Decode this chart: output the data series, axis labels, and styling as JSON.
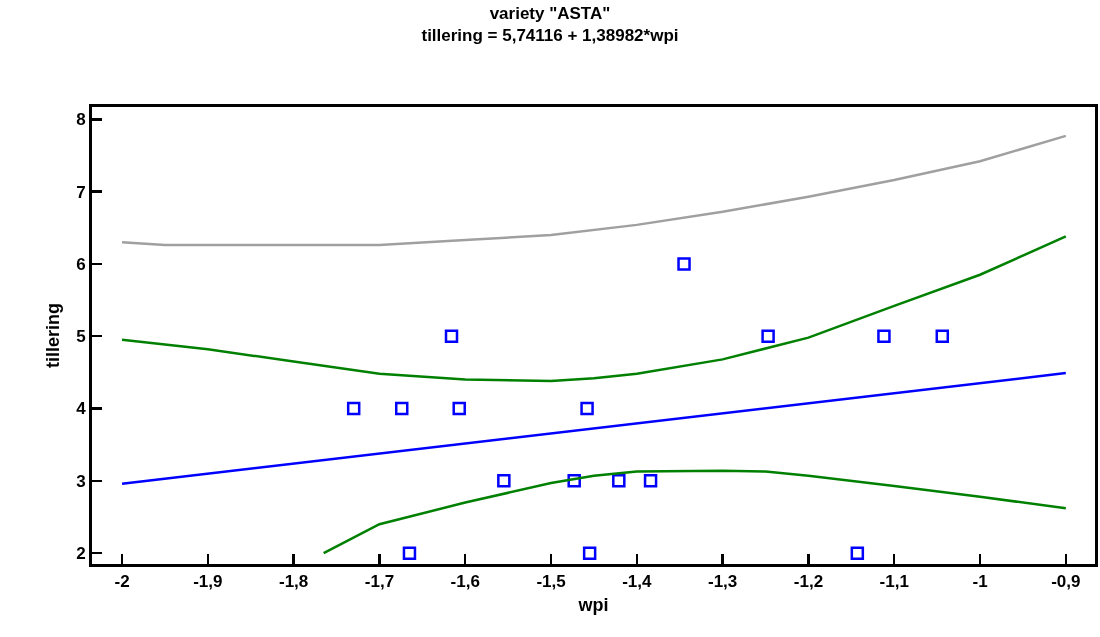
{
  "chart_data": {
    "type": "scatter",
    "title": "variety \"ASTA\"",
    "subtitle": "tillering = 5,74116 + 1,38982*wpi",
    "xlabel": "wpi",
    "ylabel": "tillering",
    "xlim": [
      -2.035,
      -0.866
    ],
    "ylim": [
      1.85,
      8.17
    ],
    "xticks": [
      {
        "value": -2,
        "label": "-2"
      },
      {
        "value": -1.9,
        "label": "-1,9"
      },
      {
        "value": -1.8,
        "label": "-1,8"
      },
      {
        "value": -1.7,
        "label": "-1,7"
      },
      {
        "value": -1.6,
        "label": "-1,6"
      },
      {
        "value": -1.5,
        "label": "-1,5"
      },
      {
        "value": -1.4,
        "label": "-1,4"
      },
      {
        "value": -1.3,
        "label": "-1,3"
      },
      {
        "value": -1.2,
        "label": "-1,2"
      },
      {
        "value": -1.1,
        "label": "-1,1"
      },
      {
        "value": -1,
        "label": "-1"
      },
      {
        "value": -0.9,
        "label": "-0,9"
      }
    ],
    "yticks": [
      2,
      3,
      4,
      5,
      6,
      7,
      8
    ],
    "grid": false,
    "series": [
      {
        "marker": "square",
        "color": "#0000ff",
        "x": [
          -1.73,
          -1.674,
          -1.607,
          -1.616,
          -1.665,
          -1.555,
          -1.458,
          -1.473,
          -1.455,
          -1.421,
          -1.384,
          -1.345,
          -1.247,
          -1.143,
          -1.112,
          -1.044
        ],
        "values": [
          4,
          4,
          4,
          5,
          2,
          3,
          4,
          3,
          2,
          3,
          3,
          6,
          5,
          2,
          5,
          5
        ]
      },
      {
        "type": "line",
        "color": "#0000ff",
        "x": [
          -2,
          -0.9
        ],
        "values": [
          2.96,
          4.49
        ]
      },
      {
        "type": "line",
        "color": "#008000",
        "x": [
          -2,
          -1.9,
          -1.8,
          -1.7,
          -1.6,
          -1.5,
          -1.45,
          -1.4,
          -1.3,
          -1.2,
          -1.1,
          -1.0,
          -0.9
        ],
        "values": [
          4.95,
          4.82,
          4.65,
          4.48,
          4.4,
          4.38,
          4.42,
          4.48,
          4.68,
          4.98,
          5.42,
          5.85,
          6.38
        ]
      },
      {
        "type": "line",
        "color": "#008000",
        "x": [
          -1.765,
          -1.7,
          -1.6,
          -1.5,
          -1.45,
          -1.4,
          -1.3,
          -1.25,
          -1.2,
          -1.1,
          -1.0,
          -0.9
        ],
        "values": [
          2.0,
          2.4,
          2.7,
          2.97,
          3.07,
          3.13,
          3.14,
          3.13,
          3.07,
          2.93,
          2.78,
          2.62
        ]
      },
      {
        "type": "line",
        "color": "#a0a0a0",
        "x": [
          -2,
          -1.95,
          -1.7,
          -1.6,
          -1.5,
          -1.4,
          -1.3,
          -1.2,
          -1.1,
          -1.0,
          -0.9
        ],
        "values": [
          6.3,
          6.26,
          6.26,
          6.33,
          6.4,
          6.54,
          6.72,
          6.93,
          7.16,
          7.42,
          7.77
        ]
      }
    ]
  }
}
